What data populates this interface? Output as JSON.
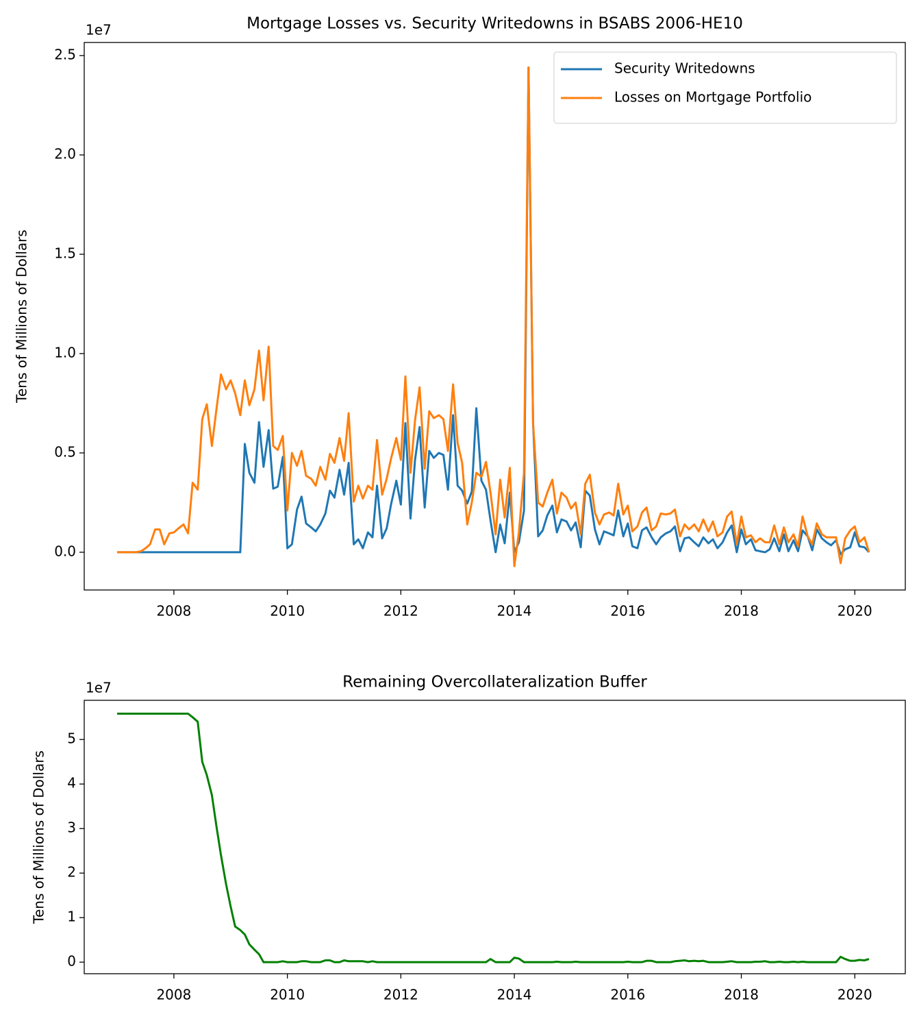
{
  "chart_data": [
    {
      "type": "line",
      "title": "Mortgage Losses vs. Security Writedowns in BSABS 2006-HE10",
      "y_label": "Tens of Millions of Dollars",
      "offset_label": "1e7",
      "legend": "upper right",
      "x": [
        2007.0,
        2007.08,
        2007.17,
        2007.25,
        2007.33,
        2007.42,
        2007.5,
        2007.58,
        2007.67,
        2007.75,
        2007.83,
        2007.92,
        2008.0,
        2008.08,
        2008.17,
        2008.25,
        2008.33,
        2008.42,
        2008.5,
        2008.58,
        2008.67,
        2008.75,
        2008.83,
        2008.92,
        2009.0,
        2009.08,
        2009.17,
        2009.25,
        2009.33,
        2009.42,
        2009.5,
        2009.58,
        2009.67,
        2009.75,
        2009.83,
        2009.92,
        2010.0,
        2010.08,
        2010.17,
        2010.25,
        2010.33,
        2010.42,
        2010.5,
        2010.58,
        2010.67,
        2010.75,
        2010.83,
        2010.92,
        2011.0,
        2011.08,
        2011.17,
        2011.25,
        2011.33,
        2011.42,
        2011.5,
        2011.58,
        2011.67,
        2011.75,
        2011.83,
        2011.92,
        2012.0,
        2012.08,
        2012.17,
        2012.25,
        2012.33,
        2012.42,
        2012.5,
        2012.58,
        2012.67,
        2012.75,
        2012.83,
        2012.92,
        2013.0,
        2013.08,
        2013.17,
        2013.25,
        2013.33,
        2013.42,
        2013.5,
        2013.58,
        2013.67,
        2013.75,
        2013.83,
        2013.92,
        2014.0,
        2014.08,
        2014.17,
        2014.25,
        2014.33,
        2014.42,
        2014.5,
        2014.58,
        2014.67,
        2014.75,
        2014.83,
        2014.92,
        2015.0,
        2015.08,
        2015.17,
        2015.25,
        2015.33,
        2015.42,
        2015.5,
        2015.58,
        2015.67,
        2015.75,
        2015.83,
        2015.92,
        2016.0,
        2016.08,
        2016.17,
        2016.25,
        2016.33,
        2016.42,
        2016.5,
        2016.58,
        2016.67,
        2016.75,
        2016.83,
        2016.92,
        2017.0,
        2017.08,
        2017.17,
        2017.25,
        2017.33,
        2017.42,
        2017.5,
        2017.58,
        2017.67,
        2017.75,
        2017.83,
        2017.92,
        2018.0,
        2018.08,
        2018.17,
        2018.25,
        2018.33,
        2018.42,
        2018.5,
        2018.58,
        2018.67,
        2018.75,
        2018.83,
        2018.92,
        2019.0,
        2019.08,
        2019.17,
        2019.25,
        2019.33,
        2019.42,
        2019.5,
        2019.58,
        2019.67,
        2019.75,
        2019.83,
        2019.92,
        2020.0,
        2020.08,
        2020.17,
        2020.25
      ],
      "series": [
        {
          "name": "Security Writedowns",
          "color": "#1f77b4",
          "values": [
            0,
            0,
            0,
            0,
            0,
            0,
            0,
            0,
            0,
            0,
            0,
            0,
            0,
            0,
            0,
            0,
            0,
            0,
            0,
            0,
            0,
            0,
            0,
            0,
            0,
            0,
            0,
            0.545,
            0.4,
            0.35,
            0.655,
            0.43,
            0.615,
            0.32,
            0.33,
            0.48,
            0.02,
            0.04,
            0.215,
            0.28,
            0.145,
            0.125,
            0.105,
            0.14,
            0.195,
            0.31,
            0.275,
            0.415,
            0.29,
            0.45,
            0.04,
            0.065,
            0.02,
            0.1,
            0.075,
            0.335,
            0.07,
            0.12,
            0.245,
            0.36,
            0.24,
            0.65,
            0.17,
            0.465,
            0.63,
            0.225,
            0.51,
            0.475,
            0.5,
            0.49,
            0.315,
            0.69,
            0.335,
            0.31,
            0.245,
            0.305,
            0.725,
            0.36,
            0.315,
            0.16,
            0.0,
            0.14,
            0.045,
            0.3,
            0.0,
            0.05,
            0.21,
            2.44,
            0.65,
            0.08,
            0.11,
            0.185,
            0.235,
            0.1,
            0.165,
            0.155,
            0.11,
            0.15,
            0.025,
            0.31,
            0.285,
            0.115,
            0.04,
            0.105,
            0.095,
            0.085,
            0.21,
            0.08,
            0.145,
            0.03,
            0.02,
            0.11,
            0.125,
            0.075,
            0.04,
            0.075,
            0.095,
            0.105,
            0.13,
            0.005,
            0.07,
            0.075,
            0.05,
            0.03,
            0.075,
            0.045,
            0.065,
            0.02,
            0.05,
            0.1,
            0.135,
            0.0,
            0.115,
            0.04,
            0.065,
            0.01,
            0.005,
            0.0,
            0.015,
            0.07,
            0.005,
            0.09,
            0.005,
            0.06,
            0.005,
            0.11,
            0.08,
            0.01,
            0.115,
            0.07,
            0.05,
            0.035,
            0.06,
            -0.01,
            0.015,
            0.025,
            0.1,
            0.03,
            0.025,
            0.0
          ]
        },
        {
          "name": "Losses on Mortgage Portfolio",
          "color": "#ff7f0e",
          "values": [
            0,
            0,
            0,
            0,
            0,
            0.005,
            0.02,
            0.04,
            0.115,
            0.115,
            0.04,
            0.095,
            0.1,
            0.12,
            0.14,
            0.095,
            0.35,
            0.315,
            0.67,
            0.745,
            0.535,
            0.72,
            0.895,
            0.82,
            0.865,
            0.8,
            0.69,
            0.865,
            0.74,
            0.82,
            1.015,
            0.765,
            1.035,
            0.535,
            0.515,
            0.585,
            0.21,
            0.5,
            0.435,
            0.51,
            0.385,
            0.37,
            0.335,
            0.43,
            0.365,
            0.495,
            0.45,
            0.575,
            0.46,
            0.7,
            0.255,
            0.335,
            0.27,
            0.335,
            0.315,
            0.565,
            0.29,
            0.37,
            0.475,
            0.575,
            0.465,
            0.885,
            0.4,
            0.665,
            0.83,
            0.42,
            0.71,
            0.675,
            0.69,
            0.67,
            0.51,
            0.845,
            0.55,
            0.45,
            0.14,
            0.25,
            0.4,
            0.38,
            0.455,
            0.3,
            0.09,
            0.365,
            0.175,
            0.425,
            -0.07,
            0.1,
            0.4,
            2.44,
            0.65,
            0.25,
            0.23,
            0.3,
            0.365,
            0.195,
            0.3,
            0.275,
            0.22,
            0.25,
            0.09,
            0.345,
            0.39,
            0.2,
            0.14,
            0.19,
            0.2,
            0.185,
            0.345,
            0.19,
            0.235,
            0.105,
            0.13,
            0.2,
            0.225,
            0.11,
            0.13,
            0.195,
            0.19,
            0.195,
            0.215,
            0.08,
            0.14,
            0.115,
            0.14,
            0.105,
            0.165,
            0.105,
            0.155,
            0.08,
            0.1,
            0.18,
            0.205,
            0.04,
            0.18,
            0.075,
            0.085,
            0.05,
            0.07,
            0.05,
            0.05,
            0.135,
            0.04,
            0.125,
            0.05,
            0.09,
            0.03,
            0.18,
            0.08,
            0.04,
            0.145,
            0.09,
            0.075,
            0.075,
            0.075,
            -0.055,
            0.07,
            0.11,
            0.13,
            0.05,
            0.075,
            0.0
          ]
        }
      ],
      "xlim": [
        2006.42,
        2020.89
      ],
      "xticks": [
        2008,
        2010,
        2012,
        2014,
        2016,
        2018,
        2020
      ],
      "ylim": [
        -0.19,
        2.566
      ],
      "yticks": [
        {
          "value": 0,
          "label": "0.0"
        },
        0.5,
        {
          "value": 1,
          "label": "1.0"
        },
        1.5,
        {
          "value": 2,
          "label": "2.0"
        },
        2.5
      ]
    },
    {
      "type": "line",
      "title": "Remaining Overcollateralization Buffer",
      "y_label": "Tens of Millions of Dollars",
      "offset_label": "1e7",
      "x": [
        2007.0,
        2007.08,
        2007.17,
        2007.25,
        2007.33,
        2007.42,
        2007.5,
        2007.58,
        2007.67,
        2007.75,
        2007.83,
        2007.92,
        2008.0,
        2008.08,
        2008.17,
        2008.25,
        2008.33,
        2008.42,
        2008.5,
        2008.58,
        2008.67,
        2008.75,
        2008.83,
        2008.92,
        2009.0,
        2009.08,
        2009.17,
        2009.25,
        2009.33,
        2009.42,
        2009.5,
        2009.58,
        2009.67,
        2009.75,
        2009.83,
        2009.92,
        2010.0,
        2010.08,
        2010.17,
        2010.25,
        2010.33,
        2010.42,
        2010.5,
        2010.58,
        2010.67,
        2010.75,
        2010.83,
        2010.92,
        2011.0,
        2011.08,
        2011.17,
        2011.25,
        2011.33,
        2011.42,
        2011.5,
        2011.58,
        2011.67,
        2011.75,
        2011.83,
        2011.92,
        2012.0,
        2012.08,
        2012.17,
        2012.25,
        2012.33,
        2012.42,
        2012.5,
        2012.58,
        2012.67,
        2012.75,
        2012.83,
        2012.92,
        2013.0,
        2013.08,
        2013.17,
        2013.25,
        2013.33,
        2013.42,
        2013.5,
        2013.58,
        2013.67,
        2013.75,
        2013.83,
        2013.92,
        2014.0,
        2014.08,
        2014.17,
        2014.25,
        2014.33,
        2014.42,
        2014.5,
        2014.58,
        2014.67,
        2014.75,
        2014.83,
        2014.92,
        2015.0,
        2015.08,
        2015.17,
        2015.25,
        2015.33,
        2015.42,
        2015.5,
        2015.58,
        2015.67,
        2015.75,
        2015.83,
        2015.92,
        2016.0,
        2016.08,
        2016.17,
        2016.25,
        2016.33,
        2016.42,
        2016.5,
        2016.58,
        2016.67,
        2016.75,
        2016.83,
        2016.92,
        2017.0,
        2017.08,
        2017.17,
        2017.25,
        2017.33,
        2017.42,
        2017.5,
        2017.58,
        2017.67,
        2017.75,
        2017.83,
        2017.92,
        2018.0,
        2018.08,
        2018.17,
        2018.25,
        2018.33,
        2018.42,
        2018.5,
        2018.58,
        2018.67,
        2018.75,
        2018.83,
        2018.92,
        2019.0,
        2019.08,
        2019.17,
        2019.25,
        2019.33,
        2019.42,
        2019.5,
        2019.58,
        2019.67,
        2019.75,
        2019.83,
        2019.92,
        2020.0,
        2020.08,
        2020.17,
        2020.25
      ],
      "series": [
        {
          "color": "#008000",
          "values": [
            5.58,
            5.58,
            5.58,
            5.58,
            5.58,
            5.58,
            5.58,
            5.58,
            5.58,
            5.58,
            5.58,
            5.58,
            5.58,
            5.58,
            5.58,
            5.58,
            5.5,
            5.4,
            4.5,
            4.2,
            3.75,
            3.05,
            2.4,
            1.75,
            1.25,
            0.8,
            0.72,
            0.62,
            0.4,
            0.28,
            0.18,
            0.0,
            0.0,
            0.0,
            0.0,
            0.02,
            0.0,
            0.0,
            0.0,
            0.02,
            0.02,
            0.0,
            0.0,
            0.0,
            0.04,
            0.04,
            0.0,
            0.0,
            0.04,
            0.02,
            0.02,
            0.02,
            0.02,
            0.0,
            0.02,
            0,
            0,
            0,
            0,
            0,
            0,
            0,
            0,
            0,
            0,
            0,
            0,
            0,
            0,
            0,
            0,
            0,
            0,
            0,
            0,
            0,
            0,
            0,
            0,
            0.07,
            0,
            0,
            0,
            0,
            0.1,
            0.08,
            0,
            0,
            0,
            0,
            0,
            0,
            0,
            0.01,
            0,
            0,
            0,
            0.01,
            0,
            0,
            0,
            0,
            0,
            0,
            0,
            0,
            0,
            0,
            0.01,
            0,
            0,
            0,
            0.03,
            0.03,
            0,
            0,
            0,
            0,
            0.02,
            0.03,
            0.04,
            0.02,
            0.03,
            0.02,
            0.03,
            0,
            0,
            0,
            0,
            0.01,
            0.02,
            0,
            0,
            0,
            0,
            0.01,
            0.01,
            0.02,
            0,
            0,
            0.01,
            0,
            0,
            0.01,
            0,
            0.01,
            0,
            0,
            0,
            0,
            0,
            0,
            0,
            0.12,
            0.07,
            0.03,
            0.03,
            0.05,
            0.04,
            0.07
          ]
        }
      ],
      "xlim": [
        2006.42,
        2020.89
      ],
      "xticks": [
        2008,
        2010,
        2012,
        2014,
        2016,
        2018,
        2020
      ],
      "ylim": [
        -0.26,
        5.88
      ],
      "yticks": [
        0,
        1,
        2,
        3,
        4,
        5
      ]
    }
  ]
}
